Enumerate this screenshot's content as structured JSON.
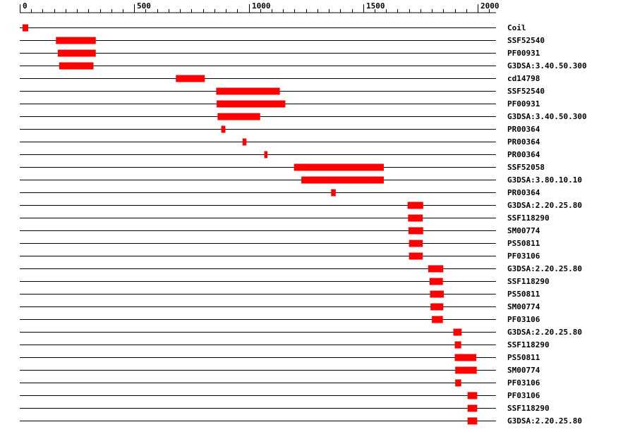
{
  "axis": {
    "min": 0,
    "max": 2070,
    "major_ticks": [
      0,
      500,
      1000,
      1500,
      2000
    ],
    "major_labels": [
      "0",
      "500",
      "1000",
      "1500",
      "2000"
    ],
    "minor_step": 50
  },
  "colors": {
    "feature": "#ff0000",
    "line": "#000000"
  },
  "rows": [
    {
      "label": "Coil",
      "start": 12,
      "end": 37
    },
    {
      "label": "SSF52540",
      "start": 158,
      "end": 332
    },
    {
      "label": "PF00931",
      "start": 166,
      "end": 332
    },
    {
      "label": "G3DSA:3.40.50.300",
      "start": 172,
      "end": 322
    },
    {
      "label": "cd14798",
      "start": 682,
      "end": 808
    },
    {
      "label": "SSF52540",
      "start": 858,
      "end": 1136
    },
    {
      "label": "PF00931",
      "start": 860,
      "end": 1160
    },
    {
      "label": "G3DSA:3.40.50.300",
      "start": 864,
      "end": 1050
    },
    {
      "label": "PR00364",
      "start": 880,
      "end": 898
    },
    {
      "label": "PR00364",
      "start": 973,
      "end": 990
    },
    {
      "label": "PR00364",
      "start": 1068,
      "end": 1082
    },
    {
      "label": "SSF52058",
      "start": 1198,
      "end": 1590
    },
    {
      "label": "G3DSA:3.80.10.10",
      "start": 1230,
      "end": 1590
    },
    {
      "label": "PR00364",
      "start": 1360,
      "end": 1380
    },
    {
      "label": "G3DSA:2.20.25.80",
      "start": 1694,
      "end": 1762
    },
    {
      "label": "SSF118290",
      "start": 1696,
      "end": 1760
    },
    {
      "label": "SM00774",
      "start": 1698,
      "end": 1762
    },
    {
      "label": "PS50811",
      "start": 1700,
      "end": 1760
    },
    {
      "label": "PF03106",
      "start": 1700,
      "end": 1760
    },
    {
      "label": "G3DSA:2.20.25.80",
      "start": 1784,
      "end": 1850
    },
    {
      "label": "SSF118290",
      "start": 1790,
      "end": 1848
    },
    {
      "label": "PS50811",
      "start": 1792,
      "end": 1852
    },
    {
      "label": "SM00774",
      "start": 1794,
      "end": 1850
    },
    {
      "label": "PF03106",
      "start": 1800,
      "end": 1848
    },
    {
      "label": "G3DSA:2.20.25.80",
      "start": 1894,
      "end": 1930
    },
    {
      "label": "SSF118290",
      "start": 1900,
      "end": 1928
    },
    {
      "label": "PS50811",
      "start": 1900,
      "end": 1994
    },
    {
      "label": "SM00774",
      "start": 1902,
      "end": 1996
    },
    {
      "label": "PF03106",
      "start": 1902,
      "end": 1928
    },
    {
      "label": "PF03106",
      "start": 1956,
      "end": 1998
    },
    {
      "label": "SSF118290",
      "start": 1956,
      "end": 1998
    },
    {
      "label": "G3DSA:2.20.25.80",
      "start": 1956,
      "end": 1998
    }
  ]
}
